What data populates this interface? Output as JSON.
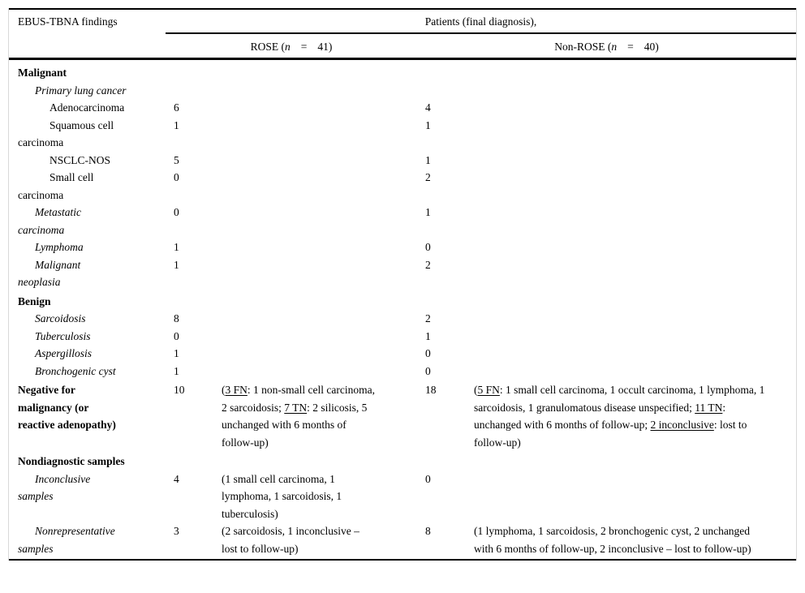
{
  "table": {
    "title_cell": "EBUS-TBNA findings",
    "span_header": "Patients (final diagnosis),",
    "groups": [
      {
        "prefix": "ROSE (",
        "nvar": "n",
        "eq": "=",
        "count": "41)"
      },
      {
        "prefix": "Non-ROSE (",
        "nvar": "n",
        "eq": "=",
        "count": "40)"
      }
    ],
    "columns": [
      "EBUS-TBNA findings",
      "ROSE count",
      "ROSE details",
      "Non-ROSE count",
      "Non-ROSE details"
    ],
    "rows": [
      {
        "label": "Malignant",
        "style": "bold",
        "indent": 0,
        "rose": "",
        "rose_note": "",
        "nonrose": "",
        "nonrose_note": ""
      },
      {
        "label": "Primary lung cancer",
        "style": "italic",
        "indent": 1,
        "rose": "",
        "rose_note": "",
        "nonrose": "",
        "nonrose_note": ""
      },
      {
        "label": "Adenocarcinoma",
        "style": "plain",
        "indent": 2,
        "rose": "6",
        "rose_note": "",
        "nonrose": "4",
        "nonrose_note": ""
      },
      {
        "label": "Squamous cell\ncarcinoma",
        "style": "plain",
        "indent": 2,
        "rose": "1",
        "rose_note": "",
        "nonrose": "1",
        "nonrose_note": ""
      },
      {
        "label": "NSCLC-NOS",
        "style": "plain",
        "indent": 2,
        "rose": "5",
        "rose_note": "",
        "nonrose": "1",
        "nonrose_note": ""
      },
      {
        "label": "Small cell\ncarcinoma",
        "style": "plain",
        "indent": 2,
        "rose": "0",
        "rose_note": "",
        "nonrose": "2",
        "nonrose_note": ""
      },
      {
        "label": "Metastatic\ncarcinoma",
        "style": "italic",
        "indent": 1,
        "rose": "0",
        "rose_note": "",
        "nonrose": "1",
        "nonrose_note": ""
      },
      {
        "label": "Lymphoma",
        "style": "italic",
        "indent": 1,
        "rose": "1",
        "rose_note": "",
        "nonrose": "0",
        "nonrose_note": ""
      },
      {
        "label": "Malignant\nneoplasia",
        "style": "italic",
        "indent": 1,
        "rose": "1",
        "rose_note": "",
        "nonrose": "2",
        "nonrose_note": ""
      },
      {
        "label": "Benign",
        "style": "bold",
        "indent": 0,
        "rose": "",
        "rose_note": "",
        "nonrose": "",
        "nonrose_note": ""
      },
      {
        "label": "Sarcoidosis",
        "style": "italic",
        "indent": 1,
        "rose": "8",
        "rose_note": "",
        "nonrose": "2",
        "nonrose_note": ""
      },
      {
        "label": "Tuberculosis",
        "style": "italic",
        "indent": 1,
        "rose": "0",
        "rose_note": "",
        "nonrose": "1",
        "nonrose_note": ""
      },
      {
        "label": "Aspergillosis",
        "style": "italic",
        "indent": 1,
        "rose": "1",
        "rose_note": "",
        "nonrose": "0",
        "nonrose_note": ""
      },
      {
        "label": "Bronchogenic cyst",
        "style": "italic",
        "indent": 1,
        "rose": "1",
        "rose_note": "",
        "nonrose": "0",
        "nonrose_note": ""
      },
      {
        "label": "Negative for\nmalignancy (or\nreactive adenopathy)",
        "style": "bold",
        "indent": 0,
        "rose": "10",
        "rose_note": "([[3 FN]]: 1 non-small cell carcinoma, 2 sarcoidosis; [[7 TN]]: 2 silicosis, 5 unchanged with 6 months of follow-up)",
        "nonrose": "18",
        "nonrose_note": "([[5 FN]]: 1 small cell carcinoma, 1 occult carcinoma, 1 lymphoma, 1 sarcoidosis, 1 granulomatous disease unspecified; [[11 TN]]: unchanged with 6 months of follow-up; [[2 inconclusive]]: lost to follow-up)"
      },
      {
        "label": "Nondiagnostic samples",
        "style": "bold",
        "indent": 0,
        "rose": "",
        "rose_note": "",
        "nonrose": "",
        "nonrose_note": ""
      },
      {
        "label": "Inconclusive\nsamples",
        "style": "italic",
        "indent": 1,
        "rose": "4",
        "rose_note": "(1 small cell carcinoma, 1 lymphoma, 1 sarcoidosis, 1 tuberculosis)",
        "nonrose": "0",
        "nonrose_note": ""
      },
      {
        "label": "Nonrepresentative\nsamples",
        "style": "italic",
        "indent": 1,
        "rose": "3",
        "rose_note": "(2 sarcoidosis, 1 inconclusive – lost to follow-up)",
        "nonrose": "8",
        "nonrose_note": "(1 lymphoma, 1 sarcoidosis, 2 bronchogenic cyst, 2 unchanged with 6 months of follow-up, 2 inconclusive – lost to follow-up)"
      }
    ]
  }
}
